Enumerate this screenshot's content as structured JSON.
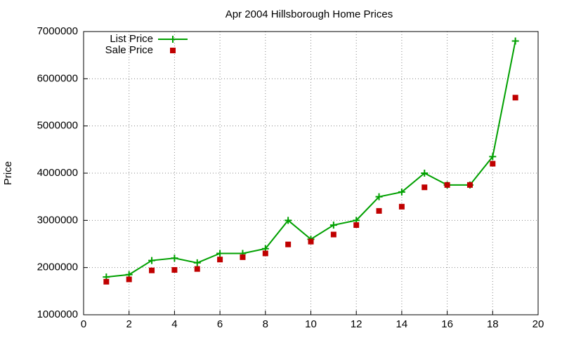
{
  "chart_data": {
    "type": "line",
    "title": "Apr 2004 Hillsborough Home Prices",
    "y_label": "Price",
    "x": [
      1,
      2,
      3,
      4,
      5,
      6,
      7,
      8,
      9,
      10,
      11,
      12,
      13,
      14,
      15,
      16,
      17,
      18,
      19
    ],
    "series": [
      {
        "name": "List Price",
        "color": "#00a000",
        "style": "linespoints",
        "values": [
          1800000,
          1850000,
          2150000,
          2200000,
          2100000,
          2300000,
          2300000,
          2400000,
          3000000,
          2600000,
          2900000,
          3000000,
          3500000,
          3600000,
          4000000,
          3750000,
          3750000,
          4350000,
          6800000
        ]
      },
      {
        "name": "Sale Price",
        "color": "#c00000",
        "style": "points",
        "values": [
          1700000,
          1750000,
          1940000,
          1950000,
          1970000,
          2170000,
          2220000,
          2300000,
          2490000,
          2550000,
          2700000,
          2900000,
          3200000,
          3290000,
          3700000,
          3750000,
          3750000,
          4200000,
          5600000
        ]
      }
    ],
    "xlim": [
      0,
      20
    ],
    "xticks": [
      0,
      2,
      4,
      6,
      8,
      10,
      12,
      14,
      16,
      18,
      20
    ],
    "ylim": [
      1000000,
      7000000
    ],
    "yticks": [
      1000000,
      2000000,
      3000000,
      4000000,
      5000000,
      6000000,
      7000000
    ],
    "grid": true,
    "legend": "top-left"
  }
}
